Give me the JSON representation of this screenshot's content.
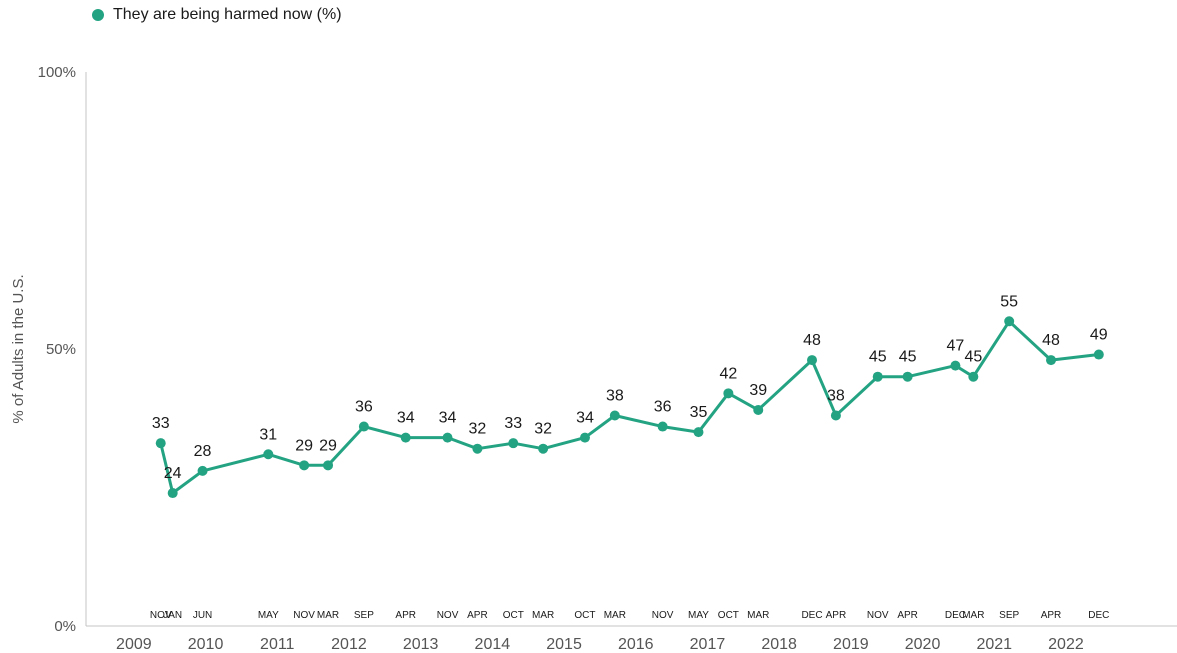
{
  "legend": {
    "label": "They are being harmed now (%)"
  },
  "colors": {
    "series": "#24a383",
    "axis": "#c4c4c4",
    "text": "#1a1a1a",
    "muted": "#555555"
  },
  "chart_data": {
    "type": "line",
    "ylabel": "% of Adults in the U.S.",
    "ylim": [
      0,
      100
    ],
    "yticks": [
      "0%",
      "50%",
      "100%"
    ],
    "years": [
      "2009",
      "2010",
      "2011",
      "2012",
      "2013",
      "2014",
      "2015",
      "2016",
      "2017",
      "2018",
      "2019",
      "2020",
      "2021",
      "2022"
    ],
    "legend_position": "top-left",
    "grid": false,
    "series": [
      {
        "name": "They are being harmed now (%)",
        "points": [
          {
            "month": "NOV",
            "year": "2009",
            "value": 33
          },
          {
            "month": "JAN",
            "year": "2010",
            "value": 24
          },
          {
            "month": "JUN",
            "year": "2010",
            "value": 28
          },
          {
            "month": "MAY",
            "year": "2011",
            "value": 31
          },
          {
            "month": "NOV",
            "year": "2011",
            "value": 29
          },
          {
            "month": "MAR",
            "year": "2012",
            "value": 29
          },
          {
            "month": "SEP",
            "year": "2012",
            "value": 36
          },
          {
            "month": "APR",
            "year": "2013",
            "value": 34
          },
          {
            "month": "NOV",
            "year": "2013",
            "value": 34
          },
          {
            "month": "APR",
            "year": "2014",
            "value": 32
          },
          {
            "month": "OCT",
            "year": "2014",
            "value": 33
          },
          {
            "month": "MAR",
            "year": "2015",
            "value": 32
          },
          {
            "month": "OCT",
            "year": "2015",
            "value": 34
          },
          {
            "month": "MAR",
            "year": "2016",
            "value": 38
          },
          {
            "month": "NOV",
            "year": "2016",
            "value": 36
          },
          {
            "month": "MAY",
            "year": "2017",
            "value": 35
          },
          {
            "month": "OCT",
            "year": "2017",
            "value": 42
          },
          {
            "month": "MAR",
            "year": "2018",
            "value": 39
          },
          {
            "month": "DEC",
            "year": "2018",
            "value": 48
          },
          {
            "month": "APR",
            "year": "2019",
            "value": 38
          },
          {
            "month": "NOV",
            "year": "2019",
            "value": 45
          },
          {
            "month": "APR",
            "year": "2020",
            "value": 45
          },
          {
            "month": "DEC",
            "year": "2020",
            "value": 47
          },
          {
            "month": "MAR",
            "year": "2021",
            "value": 45
          },
          {
            "month": "SEP",
            "year": "2021",
            "value": 55
          },
          {
            "month": "APR",
            "year": "2022",
            "value": 48
          },
          {
            "month": "DEC",
            "year": "2022",
            "value": 49
          }
        ]
      }
    ]
  }
}
